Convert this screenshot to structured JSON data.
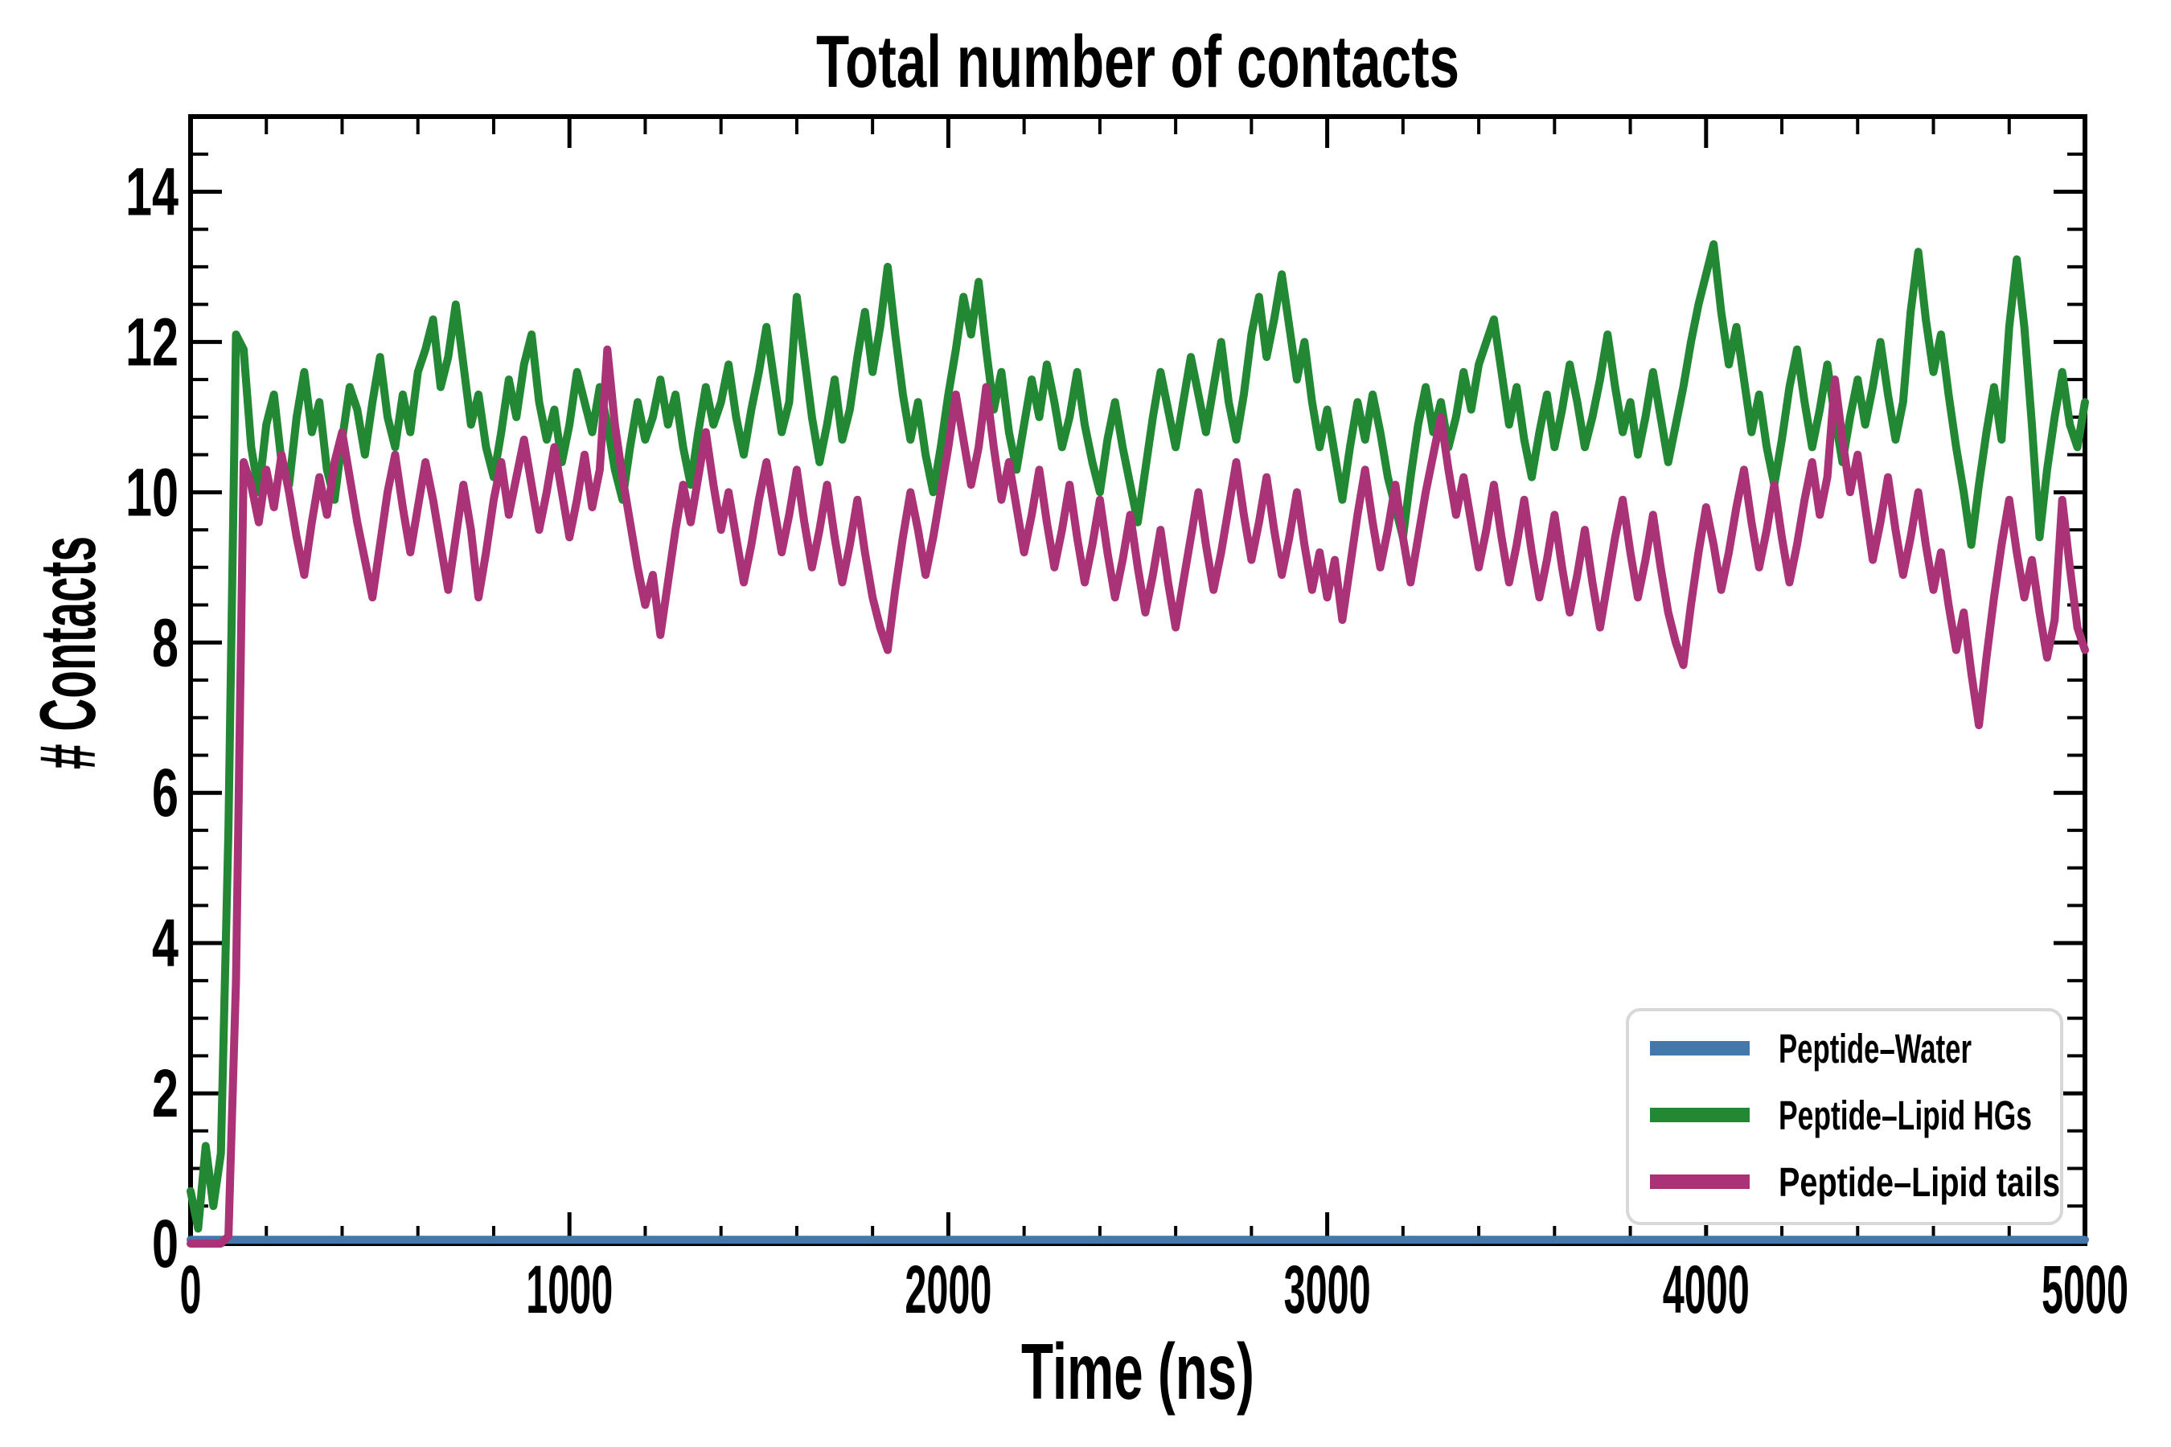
{
  "figure": {
    "title": "Total number of contacts",
    "xlabel": "Time (ns)",
    "ylabel": "# Contacts"
  },
  "legend": {
    "position": "lower right",
    "items": [
      {
        "label": "Peptide–Water",
        "color": "#4477AA"
      },
      {
        "label": "Peptide–Lipid HGs",
        "color": "#228833"
      },
      {
        "label": "Peptide–Lipid tails",
        "color": "#AA3377"
      }
    ]
  },
  "chart_data": {
    "type": "line",
    "title": "Total number of contacts",
    "xlabel": "Time (ns)",
    "ylabel": "# Contacts",
    "xlim": [
      0,
      5000
    ],
    "ylim": [
      0,
      15
    ],
    "grid": false,
    "legend_position": "lower right",
    "xticks": {
      "major": [
        0,
        1000,
        2000,
        3000,
        4000,
        5000
      ],
      "minor_step": 200
    },
    "yticks": {
      "major": [
        0,
        2,
        4,
        6,
        8,
        10,
        12,
        14
      ],
      "minor_step": 0.5
    },
    "series": [
      {
        "name": "Peptide–Water",
        "color": "#4477AA",
        "x_start": 0,
        "x_step": 5000,
        "values": [
          0,
          0
        ]
      },
      {
        "name": "Peptide–Lipid HGs",
        "color": "#228833",
        "x_start": 0,
        "x_step": 20,
        "values": [
          0.7,
          0.2,
          1.3,
          0.5,
          1.2,
          5.5,
          12.1,
          11.9,
          10.6,
          10.0,
          10.9,
          11.3,
          10.4,
          10.1,
          11.0,
          11.6,
          10.8,
          11.2,
          10.3,
          9.9,
          10.7,
          11.4,
          11.1,
          10.5,
          11.2,
          11.8,
          11.0,
          10.6,
          11.3,
          10.8,
          11.6,
          11.9,
          12.3,
          11.4,
          11.8,
          12.5,
          11.7,
          10.9,
          11.3,
          10.6,
          10.2,
          10.8,
          11.5,
          11.0,
          11.7,
          12.1,
          11.2,
          10.7,
          11.1,
          10.4,
          10.9,
          11.6,
          11.2,
          10.8,
          11.4,
          10.9,
          10.3,
          9.9,
          10.6,
          11.2,
          10.7,
          11.0,
          11.5,
          10.9,
          11.3,
          10.6,
          10.1,
          10.8,
          11.4,
          10.9,
          11.2,
          11.7,
          11.0,
          10.5,
          11.1,
          11.6,
          12.2,
          11.5,
          10.8,
          11.2,
          12.6,
          11.8,
          11.0,
          10.4,
          10.9,
          11.5,
          10.7,
          11.1,
          11.8,
          12.4,
          11.6,
          12.2,
          13.0,
          12.1,
          11.3,
          10.7,
          11.2,
          10.5,
          10.0,
          10.6,
          11.3,
          11.9,
          12.6,
          12.1,
          12.8,
          11.9,
          11.1,
          11.6,
          10.8,
          10.3,
          10.9,
          11.5,
          11.0,
          11.7,
          11.2,
          10.6,
          11.0,
          11.6,
          10.9,
          10.4,
          10.0,
          10.7,
          11.2,
          10.6,
          10.1,
          9.6,
          10.3,
          11.0,
          11.6,
          11.1,
          10.6,
          11.2,
          11.8,
          11.3,
          10.8,
          11.4,
          12.0,
          11.2,
          10.7,
          11.3,
          12.1,
          12.6,
          11.8,
          12.3,
          12.9,
          12.2,
          11.5,
          12.0,
          11.2,
          10.6,
          11.1,
          10.5,
          9.9,
          10.6,
          11.2,
          10.7,
          11.3,
          10.8,
          10.2,
          9.8,
          9.4,
          10.2,
          10.9,
          11.4,
          10.8,
          11.2,
          10.6,
          11.0,
          11.6,
          11.1,
          11.7,
          12.0,
          12.3,
          11.6,
          10.9,
          11.4,
          10.7,
          10.2,
          10.8,
          11.3,
          10.6,
          11.1,
          11.7,
          11.2,
          10.6,
          11.0,
          11.5,
          12.1,
          11.4,
          10.8,
          11.2,
          10.5,
          11.0,
          11.6,
          11.0,
          10.4,
          10.9,
          11.4,
          12.0,
          12.5,
          12.9,
          13.3,
          12.4,
          11.7,
          12.2,
          11.5,
          10.8,
          11.3,
          10.6,
          10.1,
          10.7,
          11.4,
          11.9,
          11.2,
          10.6,
          11.1,
          11.7,
          11.0,
          10.4,
          11.0,
          11.5,
          10.9,
          11.4,
          12.0,
          11.3,
          10.7,
          11.2,
          12.4,
          13.2,
          12.3,
          11.6,
          12.1,
          11.3,
          10.6,
          10.0,
          9.3,
          10.1,
          10.8,
          11.4,
          10.7,
          12.2,
          13.1,
          12.2,
          10.9,
          9.4,
          10.3,
          11.0,
          11.6,
          10.9,
          10.6,
          11.2
        ]
      },
      {
        "name": "Peptide–Lipid tails",
        "color": "#AA3377",
        "x_start": 0,
        "x_step": 20,
        "values": [
          0,
          0,
          0,
          0,
          0,
          0.1,
          3.5,
          10.4,
          10.1,
          9.6,
          10.3,
          9.8,
          10.5,
          10.0,
          9.4,
          8.9,
          9.6,
          10.2,
          9.7,
          10.4,
          10.8,
          10.2,
          9.6,
          9.1,
          8.6,
          9.3,
          10.0,
          10.5,
          9.8,
          9.2,
          9.8,
          10.4,
          9.9,
          9.3,
          8.7,
          9.4,
          10.1,
          9.5,
          8.6,
          9.2,
          9.9,
          10.4,
          9.7,
          10.2,
          10.7,
          10.1,
          9.5,
          10.0,
          10.6,
          10.0,
          9.4,
          9.9,
          10.5,
          9.8,
          10.3,
          11.9,
          10.9,
          10.2,
          9.6,
          9.0,
          8.5,
          8.9,
          8.1,
          8.8,
          9.5,
          10.1,
          9.6,
          10.2,
          10.8,
          10.1,
          9.5,
          10.0,
          9.4,
          8.8,
          9.3,
          9.9,
          10.4,
          9.8,
          9.2,
          9.7,
          10.3,
          9.6,
          9.0,
          9.5,
          10.1,
          9.4,
          8.8,
          9.3,
          9.9,
          9.2,
          8.6,
          8.2,
          7.9,
          8.7,
          9.4,
          10.0,
          9.5,
          8.9,
          9.4,
          10.0,
          10.6,
          11.3,
          10.7,
          10.1,
          10.6,
          11.4,
          10.6,
          9.9,
          10.4,
          9.8,
          9.2,
          9.7,
          10.3,
          9.6,
          9.0,
          9.5,
          10.1,
          9.4,
          8.8,
          9.3,
          9.9,
          9.2,
          8.6,
          9.1,
          9.7,
          9.0,
          8.4,
          8.9,
          9.5,
          8.8,
          8.2,
          8.8,
          9.4,
          10.0,
          9.3,
          8.7,
          9.2,
          9.8,
          10.4,
          9.7,
          9.1,
          9.6,
          10.2,
          9.5,
          8.9,
          9.4,
          10.0,
          9.3,
          8.7,
          9.2,
          8.6,
          9.1,
          8.3,
          9.0,
          9.7,
          10.3,
          9.6,
          9.0,
          9.5,
          10.1,
          9.4,
          8.8,
          9.4,
          10.0,
          10.5,
          11.0,
          10.3,
          9.7,
          10.2,
          9.6,
          9.0,
          9.5,
          10.1,
          9.4,
          8.8,
          9.3,
          9.9,
          9.2,
          8.6,
          9.1,
          9.7,
          9.0,
          8.4,
          8.9,
          9.5,
          8.8,
          8.2,
          8.8,
          9.4,
          9.9,
          9.2,
          8.6,
          9.1,
          9.7,
          9.0,
          8.4,
          8.0,
          7.7,
          8.5,
          9.2,
          9.8,
          9.3,
          8.7,
          9.2,
          9.8,
          10.3,
          9.6,
          9.0,
          9.5,
          10.1,
          9.4,
          8.8,
          9.3,
          9.9,
          10.4,
          9.7,
          10.2,
          11.5,
          10.7,
          10.0,
          10.5,
          9.8,
          9.1,
          9.6,
          10.2,
          9.5,
          8.9,
          9.4,
          10.0,
          9.3,
          8.7,
          9.2,
          8.5,
          7.9,
          8.4,
          7.6,
          6.9,
          7.8,
          8.6,
          9.3,
          9.9,
          9.2,
          8.6,
          9.1,
          8.4,
          7.8,
          8.3,
          9.9,
          9.0,
          8.2,
          7.9
        ]
      }
    ]
  }
}
